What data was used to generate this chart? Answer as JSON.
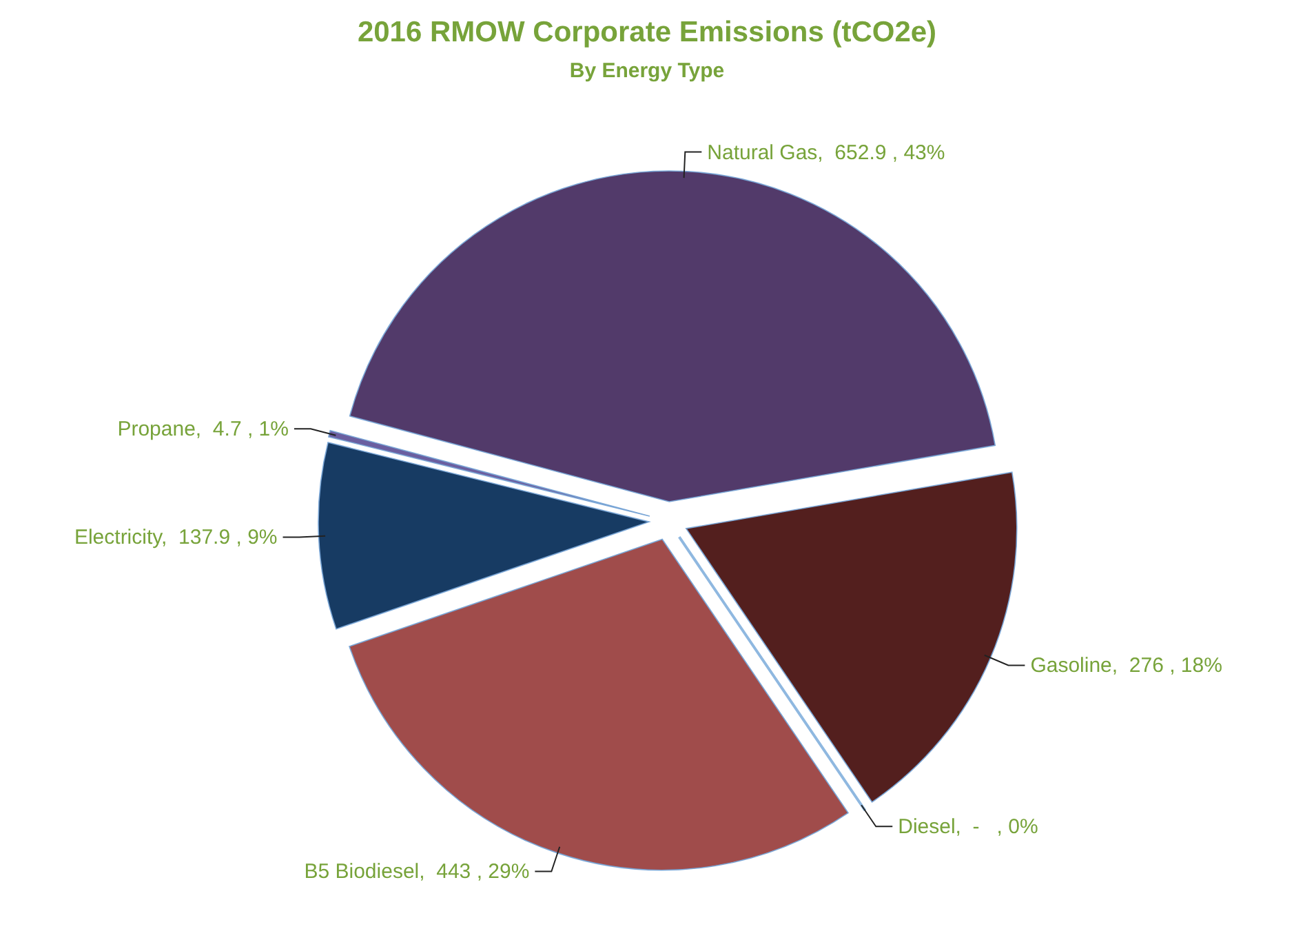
{
  "chart_data": {
    "type": "pie",
    "title": "2016 RMOW Corporate Emissions (tCO2e)",
    "subtitle": "By Energy Type",
    "categories": [
      "Natural Gas",
      "Gasoline",
      "Diesel",
      "B5 Biodiesel",
      "Electricity",
      "Propane"
    ],
    "values": [
      652.9,
      276,
      0,
      443,
      137.9,
      4.7
    ],
    "value_labels": [
      "652.9 , 43%",
      "276 , 18%",
      "-   , 0%",
      "443 , 29%",
      "137.9 , 9%",
      "4.7 , 1%"
    ],
    "colors": [
      "#523a6a",
      "#531f1e",
      "#8fb8e0",
      "#a04c4b",
      "#173b63",
      "#6a5fa0"
    ]
  }
}
